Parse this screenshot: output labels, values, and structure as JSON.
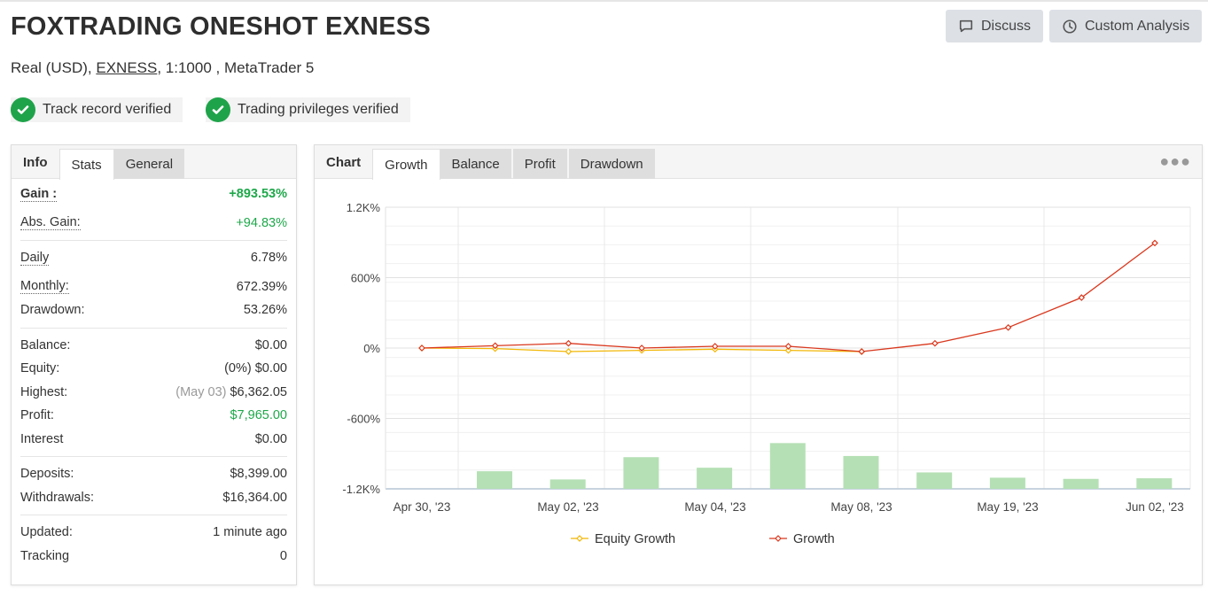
{
  "header": {
    "title": "FOXTRADING ONESHOT EXNESS",
    "subtitle_pre": "Real (USD), ",
    "subtitle_link": "EXNESS",
    "subtitle_post": ", 1:1000 , MetaTrader 5",
    "discuss_label": "Discuss",
    "analysis_label": "Custom Analysis"
  },
  "badges": {
    "track": "Track record verified",
    "privileges": "Trading privileges verified"
  },
  "left_panel": {
    "tabs": [
      "Info",
      "Stats",
      "General"
    ],
    "gain_label": "Gain :",
    "gain_value": "+893.53%",
    "abs_gain_label": "Abs. Gain:",
    "abs_gain_value": "+94.83%",
    "daily_label": "Daily",
    "daily_value": "6.78%",
    "monthly_label": "Monthly:",
    "monthly_value": "672.39%",
    "drawdown_label": "Drawdown:",
    "drawdown_value": "53.26%",
    "balance_label": "Balance:",
    "balance_value": "$0.00",
    "equity_label": "Equity:",
    "equity_value": "(0%) $0.00",
    "highest_label": "Highest:",
    "highest_date": "(May 03)",
    "highest_value": "$6,362.05",
    "profit_label": "Profit:",
    "profit_value": "$7,965.00",
    "interest_label": "Interest",
    "interest_value": "$0.00",
    "deposits_label": "Deposits:",
    "deposits_value": "$8,399.00",
    "withdrawals_label": "Withdrawals:",
    "withdrawals_value": "$16,364.00",
    "updated_label": "Updated:",
    "updated_value": "1 minute ago",
    "tracking_label": "Tracking",
    "tracking_value": "0"
  },
  "chart_panel": {
    "tabs": [
      "Chart",
      "Growth",
      "Balance",
      "Profit",
      "Drawdown"
    ],
    "more_icon": "more-horizontal-icon"
  },
  "colors": {
    "growth": "#d9381e",
    "equity_growth": "#f2b705",
    "bars": "#b5e0b5",
    "verified": "#1fa34a",
    "gain": "#1ea84a"
  },
  "chart_data": {
    "type": "line",
    "y_ticks": [
      "1.2K%",
      "600%",
      "0%",
      "-600%",
      "-1.2K%"
    ],
    "ylim": [
      -1200,
      1200
    ],
    "x_ticks": [
      "Apr 30, '23",
      "May 02, '23",
      "May 04, '23",
      "May 08, '23",
      "May 19, '23",
      "Jun 02, '23"
    ],
    "grid": true,
    "legend_position": "bottom",
    "series": [
      {
        "name": "Equity Growth",
        "values": [
          0,
          -5,
          -30,
          -20,
          -10,
          -20,
          -30
        ]
      },
      {
        "name": "Growth",
        "values": [
          0,
          20,
          40,
          0,
          15,
          15,
          -30,
          40,
          175,
          430,
          895
        ]
      },
      {
        "name": "bars",
        "values": [
          -1050,
          -1120,
          -930,
          -1020,
          -810,
          -920,
          -1060,
          -1105,
          -1115,
          -1110
        ]
      }
    ]
  }
}
